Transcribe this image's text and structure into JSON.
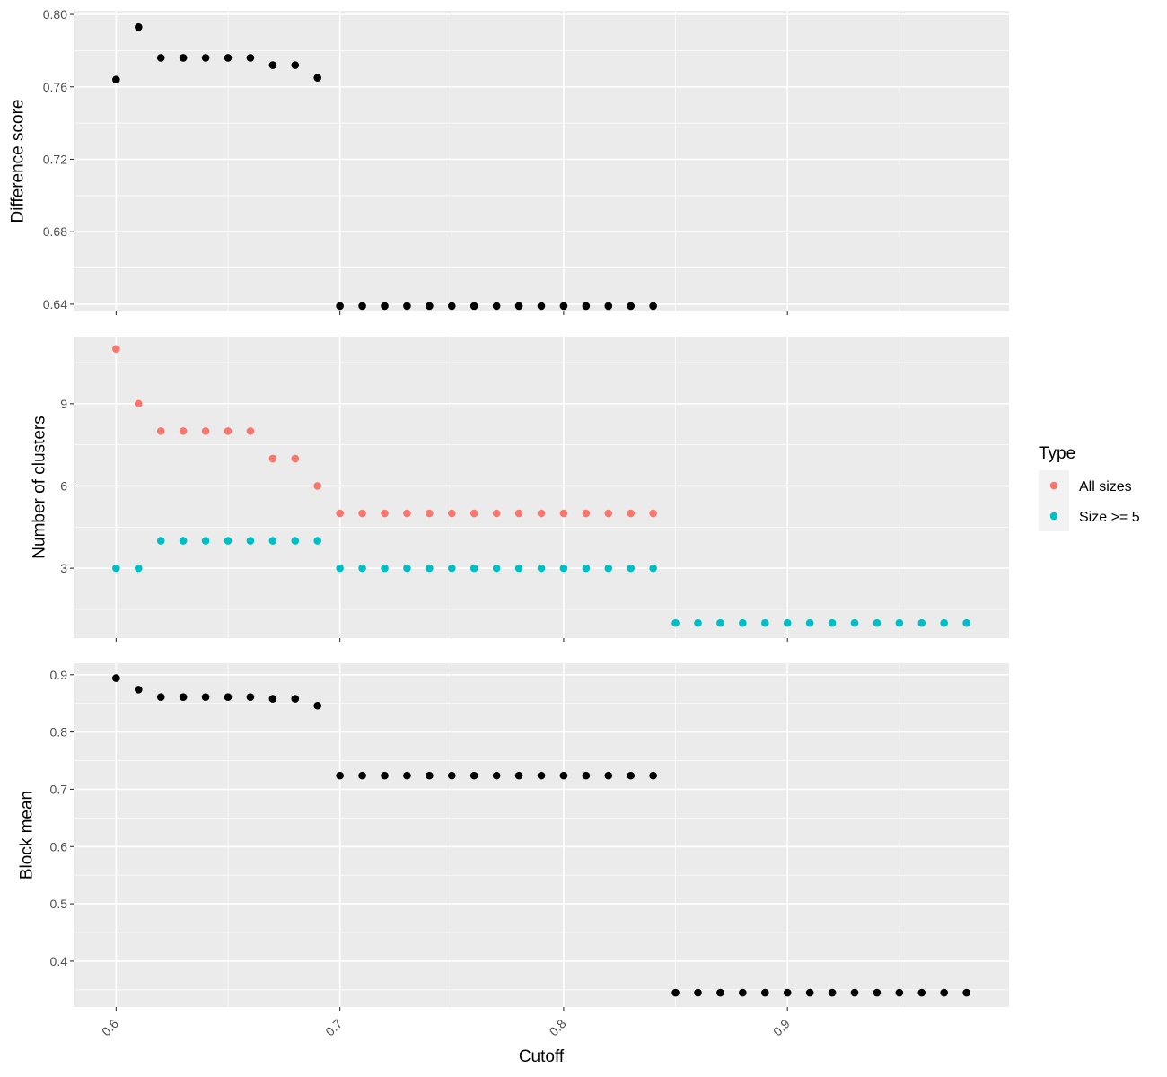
{
  "chart_data": [
    {
      "type": "scatter",
      "title": "",
      "xlabel": "",
      "ylabel": "Difference score",
      "xlim": [
        0.581,
        0.999
      ],
      "ylim": [
        0.636,
        0.802
      ],
      "yticks": [
        0.64,
        0.68,
        0.72,
        0.76,
        0.8
      ],
      "ytick_labels": [
        "0.64",
        "0.68",
        "0.72",
        "0.76",
        "0.80"
      ],
      "grid": true,
      "series": [
        {
          "color": "#000000",
          "x": [
            0.6,
            0.61,
            0.62,
            0.63,
            0.64,
            0.65,
            0.66,
            0.67,
            0.68,
            0.69,
            0.7,
            0.71,
            0.72,
            0.73,
            0.74,
            0.75,
            0.76,
            0.77,
            0.78,
            0.79,
            0.8,
            0.81,
            0.82,
            0.83,
            0.84
          ],
          "y": [
            0.764,
            0.793,
            0.776,
            0.776,
            0.776,
            0.776,
            0.776,
            0.772,
            0.772,
            0.765,
            0.639,
            0.639,
            0.639,
            0.639,
            0.639,
            0.639,
            0.639,
            0.639,
            0.639,
            0.639,
            0.639,
            0.639,
            0.639,
            0.639,
            0.639
          ]
        }
      ]
    },
    {
      "type": "scatter",
      "title": "",
      "xlabel": "",
      "ylabel": "Number of clusters",
      "xlim": [
        0.581,
        0.999
      ],
      "ylim": [
        0.45,
        11.45
      ],
      "yticks": [
        3,
        6,
        9
      ],
      "ytick_labels": [
        "3",
        "6",
        "9"
      ],
      "grid": true,
      "legend": {
        "title": "Type",
        "position": "right",
        "entries": [
          {
            "label": "All sizes",
            "color": "#F8766D"
          },
          {
            "label": "Size >= 5",
            "color": "#00BFC4"
          }
        ]
      },
      "series": [
        {
          "name": "All sizes",
          "color": "#F8766D",
          "x": [
            0.6,
            0.61,
            0.62,
            0.63,
            0.64,
            0.65,
            0.66,
            0.67,
            0.68,
            0.69,
            0.7,
            0.71,
            0.72,
            0.73,
            0.74,
            0.75,
            0.76,
            0.77,
            0.78,
            0.79,
            0.8,
            0.81,
            0.82,
            0.83,
            0.84
          ],
          "y": [
            11,
            9,
            8,
            8,
            8,
            8,
            8,
            7,
            7,
            6,
            5,
            5,
            5,
            5,
            5,
            5,
            5,
            5,
            5,
            5,
            5,
            5,
            5,
            5,
            5
          ]
        },
        {
          "name": "Size >= 5",
          "color": "#00BFC4",
          "x": [
            0.6,
            0.61,
            0.62,
            0.63,
            0.64,
            0.65,
            0.66,
            0.67,
            0.68,
            0.69,
            0.7,
            0.71,
            0.72,
            0.73,
            0.74,
            0.75,
            0.76,
            0.77,
            0.78,
            0.79,
            0.8,
            0.81,
            0.82,
            0.83,
            0.84,
            0.85,
            0.86,
            0.87,
            0.88,
            0.89,
            0.9,
            0.91,
            0.92,
            0.93,
            0.94,
            0.95,
            0.96,
            0.97,
            0.98
          ],
          "y": [
            3,
            3,
            4,
            4,
            4,
            4,
            4,
            4,
            4,
            4,
            3,
            3,
            3,
            3,
            3,
            3,
            3,
            3,
            3,
            3,
            3,
            3,
            3,
            3,
            3,
            1,
            1,
            1,
            1,
            1,
            1,
            1,
            1,
            1,
            1,
            1,
            1,
            1,
            1
          ]
        }
      ]
    },
    {
      "type": "scatter",
      "title": "",
      "xlabel": "Cutoff",
      "ylabel": "Block mean",
      "xlim": [
        0.581,
        0.999
      ],
      "ylim": [
        0.32,
        0.92
      ],
      "yticks": [
        0.4,
        0.5,
        0.6,
        0.7,
        0.8,
        0.9
      ],
      "ytick_labels": [
        "0.4",
        "0.5",
        "0.6",
        "0.7",
        "0.8",
        "0.9"
      ],
      "xticks": [
        0.6,
        0.7,
        0.8,
        0.9
      ],
      "xtick_labels": [
        "0.6",
        "0.7",
        "0.8",
        "0.9"
      ],
      "grid": true,
      "series": [
        {
          "color": "#000000",
          "x": [
            0.6,
            0.61,
            0.62,
            0.63,
            0.64,
            0.65,
            0.66,
            0.67,
            0.68,
            0.69,
            0.7,
            0.71,
            0.72,
            0.73,
            0.74,
            0.75,
            0.76,
            0.77,
            0.78,
            0.79,
            0.8,
            0.81,
            0.82,
            0.83,
            0.84,
            0.85,
            0.86,
            0.87,
            0.88,
            0.89,
            0.9,
            0.91,
            0.92,
            0.93,
            0.94,
            0.95,
            0.96,
            0.97,
            0.98
          ],
          "y": [
            0.894,
            0.874,
            0.861,
            0.861,
            0.861,
            0.861,
            0.861,
            0.858,
            0.858,
            0.846,
            0.724,
            0.724,
            0.724,
            0.724,
            0.724,
            0.724,
            0.724,
            0.724,
            0.724,
            0.724,
            0.724,
            0.724,
            0.724,
            0.724,
            0.724,
            0.345,
            0.345,
            0.345,
            0.345,
            0.345,
            0.345,
            0.345,
            0.345,
            0.345,
            0.345,
            0.345,
            0.345,
            0.345,
            0.345
          ]
        }
      ]
    }
  ]
}
